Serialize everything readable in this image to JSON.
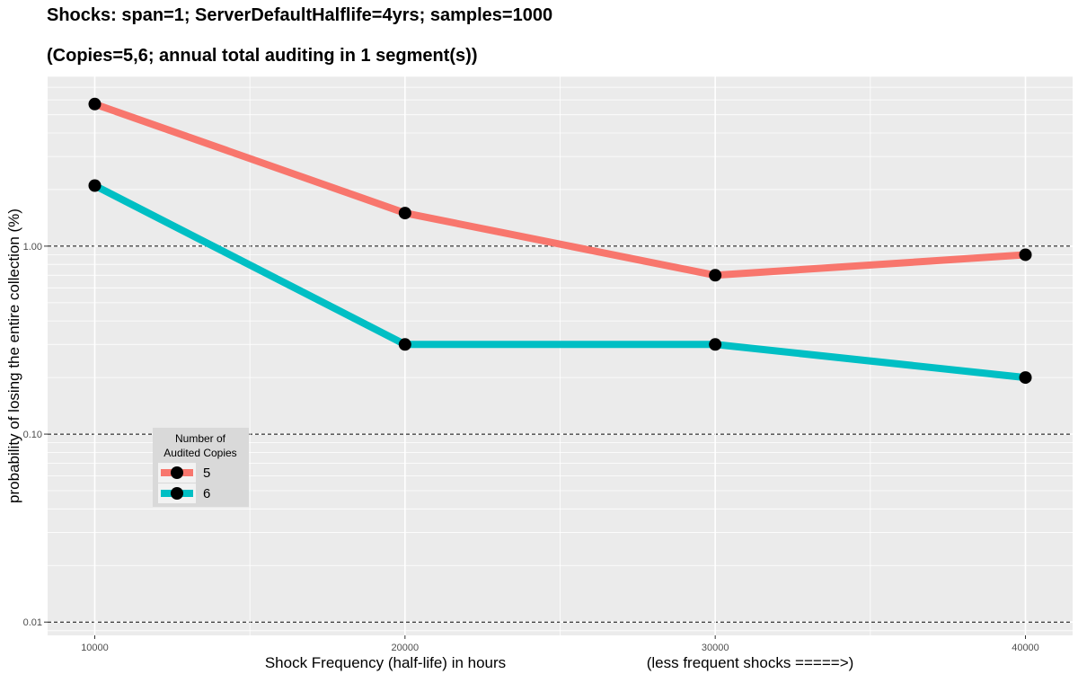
{
  "chart_data": {
    "type": "line",
    "title": "Shocks: span=1; ServerDefaultHalflife=4yrs; samples=1000",
    "subtitle": "(Copies=5,6; annual total auditing in 1 segment(s))",
    "xlabel": "Shock Frequency (half-life) in hours",
    "xlabel_note": "(less frequent shocks =====>)",
    "ylabel": "probability of losing the entire collection (%)",
    "x": [
      10000,
      20000,
      30000,
      40000
    ],
    "x_ticks": [
      "10000",
      "20000",
      "30000",
      "40000"
    ],
    "y_scale": "log10",
    "ylim": [
      0.0085,
      8.0
    ],
    "y_ticks": [
      "0.01",
      "0.10",
      "1.00"
    ],
    "y_tick_values": [
      0.01,
      0.1,
      1.0
    ],
    "grid": true,
    "reference_lines": [
      0.01,
      0.1,
      1.0
    ],
    "legend": {
      "title_lines": [
        "Number of",
        "Audited Copies"
      ],
      "position": "bottom-left"
    },
    "series": [
      {
        "name": "5",
        "color": "#F8766D",
        "values": [
          5.7,
          1.5,
          0.7,
          0.9
        ]
      },
      {
        "name": "6",
        "color": "#00BFC4",
        "values": [
          2.1,
          0.3,
          0.3,
          0.2
        ]
      }
    ],
    "colors": {
      "panel": "#EBEBEB",
      "grid": "#FFFFFF",
      "marker": "#000000",
      "legend_bg": "#D9D9D9"
    }
  }
}
